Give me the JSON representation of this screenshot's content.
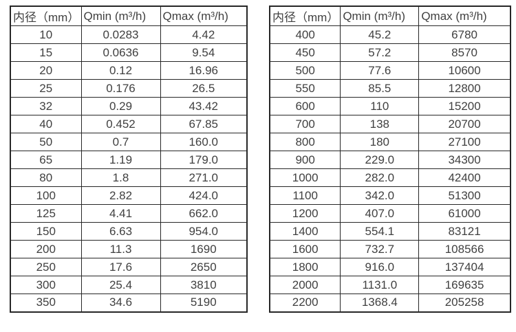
{
  "page": {
    "background_color": "#ffffff",
    "border_color": "#262626",
    "text_color": "#404040"
  },
  "tables": [
    {
      "name": "small-diameter-flow-table",
      "headers": [
        "内径（mm）",
        "Qmin (m³/h)",
        "Qmax (m³/h)"
      ],
      "rows": [
        [
          "10",
          "0.0283",
          "4.42"
        ],
        [
          "15",
          "0.0636",
          "9.54"
        ],
        [
          "20",
          "0.12",
          "16.96"
        ],
        [
          "25",
          "0.176",
          "26.5"
        ],
        [
          "32",
          "0.29",
          "43.42"
        ],
        [
          "40",
          "0.452",
          "67.85"
        ],
        [
          "50",
          "0.7",
          "160.0"
        ],
        [
          "65",
          "1.19",
          "179.0"
        ],
        [
          "80",
          "1.8",
          "271.0"
        ],
        [
          "100",
          "2.82",
          "424.0"
        ],
        [
          "125",
          "4.41",
          "662.0"
        ],
        [
          "150",
          "6.63",
          "954.0"
        ],
        [
          "200",
          "11.3",
          "1690"
        ],
        [
          "250",
          "17.6",
          "2650"
        ],
        [
          "300",
          "25.4",
          "3810"
        ],
        [
          "350",
          "34.6",
          "5190"
        ]
      ]
    },
    {
      "name": "large-diameter-flow-table",
      "headers": [
        "内径（mm）",
        "Qmin (m³/h)",
        "Qmax (m³/h)"
      ],
      "rows": [
        [
          "400",
          "45.2",
          "6780"
        ],
        [
          "450",
          "57.2",
          "8570"
        ],
        [
          "500",
          "77.6",
          "10600"
        ],
        [
          "550",
          "85.5",
          "12800"
        ],
        [
          "600",
          "110",
          "15200"
        ],
        [
          "700",
          "138",
          "20700"
        ],
        [
          "800",
          "180",
          "27100"
        ],
        [
          "900",
          "229.0",
          "34300"
        ],
        [
          "1000",
          "282.0",
          "42400"
        ],
        [
          "1100",
          "342.0",
          "51300"
        ],
        [
          "1200",
          "407.0",
          "61000"
        ],
        [
          "1400",
          "554.1",
          "83121"
        ],
        [
          "1600",
          "732.7",
          "108566"
        ],
        [
          "1800",
          "916.0",
          "137404"
        ],
        [
          "2000",
          "1131.0",
          "169635"
        ],
        [
          "2200",
          "1368.4",
          "205258"
        ]
      ]
    }
  ]
}
